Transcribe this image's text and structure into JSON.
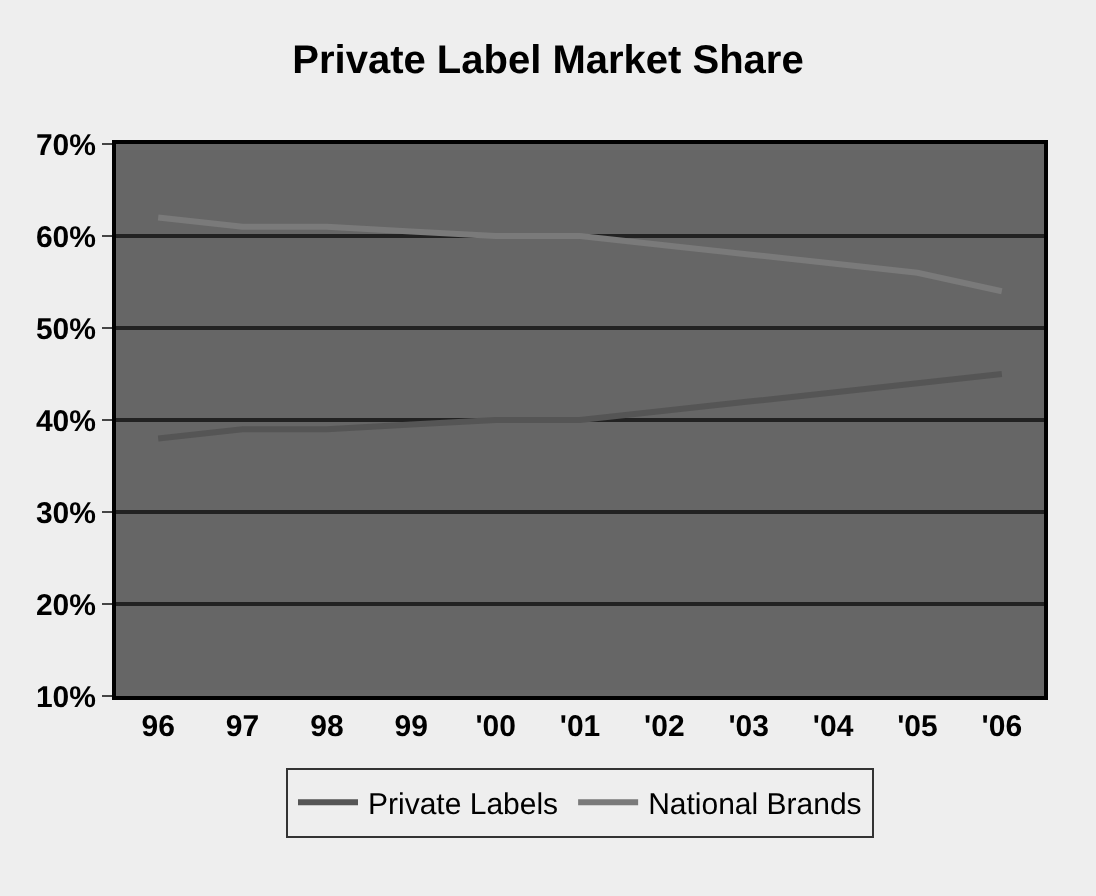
{
  "chart_data": {
    "type": "line",
    "title": "Private Label Market Share",
    "categories": [
      "96",
      "97",
      "98",
      "99",
      "'00",
      "'01",
      "'02",
      "'03",
      "'04",
      "'05",
      "'06"
    ],
    "series": [
      {
        "name": "Private Labels",
        "color": "#555555",
        "values": [
          38,
          39,
          39,
          39.5,
          40,
          40,
          41,
          42,
          43,
          44,
          45
        ]
      },
      {
        "name": "National Brands",
        "color": "#7a7a7a",
        "values": [
          62,
          61,
          61,
          60.5,
          60,
          60,
          59,
          58,
          57,
          56,
          54
        ]
      }
    ],
    "ylim": [
      10,
      70
    ],
    "yticks": [
      {
        "value": 10,
        "label": "10%"
      },
      {
        "value": 20,
        "label": "20%"
      },
      {
        "value": 30,
        "label": "30%"
      },
      {
        "value": 40,
        "label": "40%"
      },
      {
        "value": 50,
        "label": "50%"
      },
      {
        "value": 60,
        "label": "60%"
      },
      {
        "value": 70,
        "label": "70%"
      }
    ],
    "grid": "y",
    "legend": "bottom",
    "marker": "none",
    "line_style": "solid"
  }
}
